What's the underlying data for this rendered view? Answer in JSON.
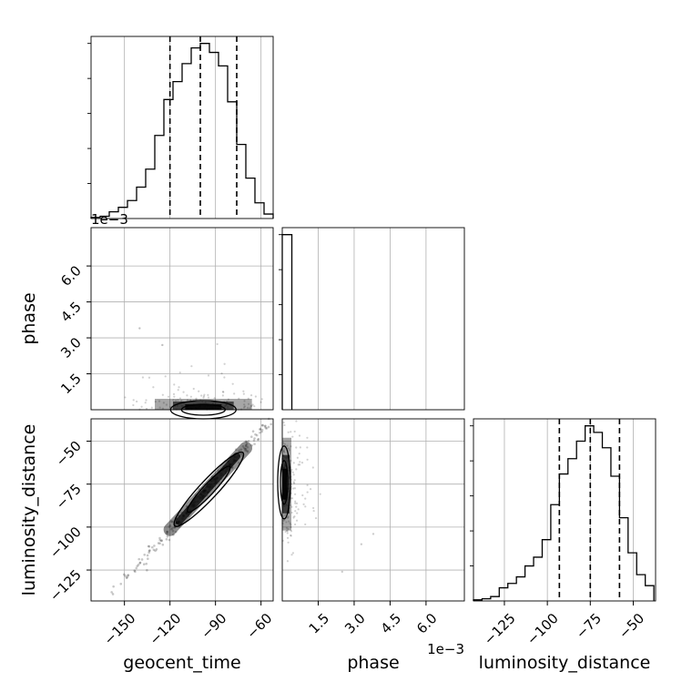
{
  "chart_data": {
    "type": "corner",
    "parameters": [
      "geocent_time",
      "phase",
      "luminosity_distance"
    ],
    "axis_labels": {
      "geocent_time": "geocent_time",
      "phase": "phase",
      "luminosity_distance": "luminosity_distance"
    },
    "phase_offset_text": "1e−3",
    "grid": true,
    "colors": {
      "line": "#000000",
      "grid": "#b0b0b0",
      "points": "#000000"
    },
    "ranges": {
      "geocent_time": [
        -172,
        -52
      ],
      "phase": [
        0.0,
        0.0076
      ],
      "luminosity_distance": [
        -143,
        -37
      ]
    },
    "ticks": {
      "geocent_time": {
        "values": [
          -150,
          -120,
          -90,
          -60
        ],
        "labels": [
          "−150",
          "−120",
          "−90",
          "−60"
        ]
      },
      "phase": {
        "values": [
          0.0015,
          0.003,
          0.0045,
          0.006
        ],
        "labels": [
          "1.5",
          "3.0",
          "4.5",
          "6.0"
        ]
      },
      "luminosity_distance": {
        "values": [
          -125,
          -100,
          -75,
          -50
        ],
        "labels": [
          "−125",
          "−100",
          "−75",
          "−50"
        ]
      }
    },
    "histograms": {
      "geocent_time": {
        "edges": [
          -172,
          -166,
          -160,
          -154,
          -148,
          -142,
          -136,
          -130,
          -124,
          -118,
          -112,
          -106,
          -100,
          -94,
          -88,
          -82,
          -76,
          -70,
          -64,
          -58,
          -52
        ],
        "counts": [
          0.5,
          1,
          3,
          5,
          8,
          14,
          22,
          37,
          53,
          61,
          69,
          76,
          78,
          74,
          68,
          52,
          33,
          18,
          7,
          2
        ],
        "quantiles": [
          -120,
          -100,
          -76
        ]
      },
      "phase": {
        "edges": [
          0.0,
          0.0004
        ],
        "counts": [
          1.0
        ],
        "quantiles": []
      },
      "luminosity_distance": {
        "edges": [
          -143,
          -138,
          -133,
          -128,
          -123,
          -118,
          -113,
          -108,
          -103,
          -98,
          -93,
          -88,
          -83,
          -78,
          -73,
          -68,
          -63,
          -58,
          -53,
          -48,
          -43,
          -38
        ],
        "counts": [
          0.5,
          1,
          2,
          6,
          8,
          11,
          16,
          20,
          28,
          44,
          58,
          65,
          73,
          80,
          77,
          70,
          57,
          38,
          22,
          12,
          7
        ],
        "quantiles": [
          -93,
          -75,
          -58
        ]
      }
    },
    "correlations": {
      "geocent_time_vs_luminosity_distance": {
        "slope": 0.95,
        "intercept": 12.5,
        "center": [
          -98,
          -80.6
        ]
      }
    }
  }
}
